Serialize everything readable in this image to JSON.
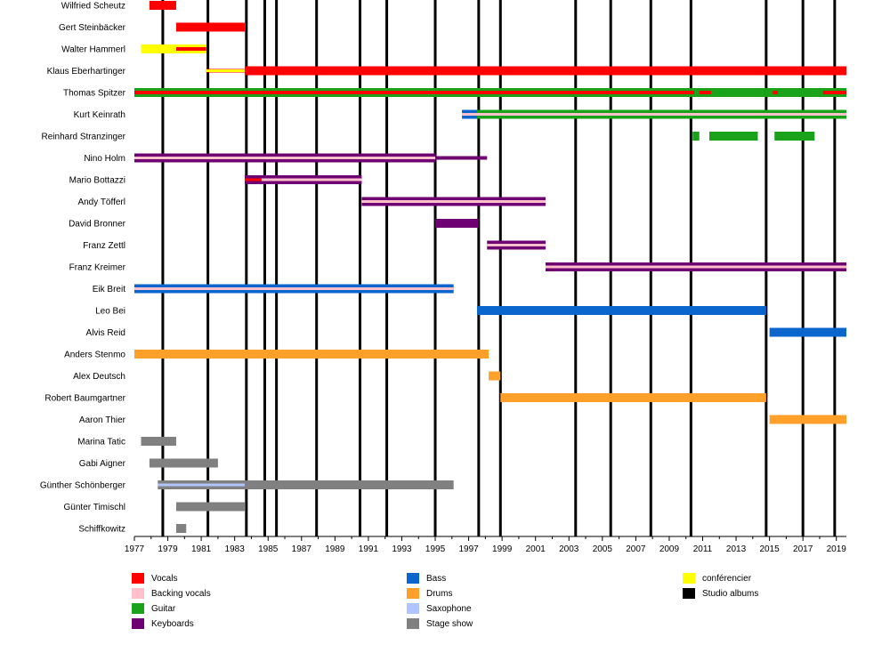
{
  "chart_data": {
    "type": "timeline",
    "title": "",
    "x_axis": {
      "min": 1977,
      "max": 2019.6,
      "tick_start": 1977,
      "tick_end": 2019,
      "tick_step": 2
    },
    "colors": {
      "Vocals": "#ff0000",
      "Backing vocals": "#ffc0cb",
      "Guitar": "#1aa31a",
      "Keyboards": "#6e0073",
      "Bass": "#0a66cc",
      "Drums": "#ffa02a",
      "Saxophone": "#b0c4ff",
      "Stage show": "#808080",
      "conférencier": "#ffff00",
      "Studio albums": "#000000"
    },
    "legend": [
      [
        "Vocals",
        "Backing vocals",
        "Guitar",
        "Keyboards"
      ],
      [
        "Bass",
        "Drums",
        "Saxophone",
        "Stage show"
      ],
      [
        "conférencier",
        "Studio albums"
      ]
    ],
    "studio_albums": [
      1978.7,
      1981.4,
      1983.7,
      1984.8,
      1985.5,
      1987.9,
      1990.5,
      1992.1,
      1995.0,
      1997.6,
      1998.9,
      2003.4,
      2005.5,
      2007.9,
      2010.3,
      2014.8,
      2017.0,
      2018.9
    ],
    "members": [
      {
        "name": "Wilfried Scheutz",
        "bars": [
          {
            "role": "Vocals",
            "start": 1977.9,
            "end": 1979.5
          }
        ]
      },
      {
        "name": "Gert Steinbäcker",
        "bars": [
          {
            "role": "Vocals",
            "start": 1979.5,
            "end": 1983.6
          }
        ]
      },
      {
        "name": "Walter Hammerl",
        "bars": [
          {
            "role": "conférencier",
            "start": 1977.4,
            "end": 1981.3
          },
          {
            "role": "Vocals",
            "start": 1979.5,
            "end": 1981.3,
            "thin": true
          }
        ]
      },
      {
        "name": "Klaus Eberhartinger",
        "bars": [
          {
            "role": "Vocals",
            "start": 1981.3,
            "end": 1983.6,
            "thin": true
          },
          {
            "role": "conférencier",
            "start": 1981.3,
            "end": 1983.6,
            "stripe": true
          },
          {
            "role": "Vocals",
            "start": 1983.6,
            "end": 2019.6
          }
        ]
      },
      {
        "name": "Thomas Spitzer",
        "bars": [
          {
            "role": "Guitar",
            "start": 1977.0,
            "end": 2019.6
          },
          {
            "role": "Vocals",
            "start": 1977.0,
            "end": 2010.5,
            "thin": true
          },
          {
            "role": "Vocals",
            "start": 2010.8,
            "end": 2011.5,
            "thin": true
          },
          {
            "role": "Vocals",
            "start": 2015.2,
            "end": 2015.5,
            "thin": true
          },
          {
            "role": "Vocals",
            "start": 2018.2,
            "end": 2019.6,
            "thin": true
          }
        ]
      },
      {
        "name": "Kurt Keinrath",
        "bars": [
          {
            "role": "Bass",
            "start": 1996.6,
            "end": 1997.5
          },
          {
            "role": "Guitar",
            "start": 1997.5,
            "end": 2019.6
          },
          {
            "role": "Backing vocals",
            "start": 1996.6,
            "end": 2019.6,
            "stripe": true
          }
        ]
      },
      {
        "name": "Reinhard Stranzinger",
        "bars": [
          {
            "role": "Guitar",
            "start": 2010.4,
            "end": 2010.8
          },
          {
            "role": "Guitar",
            "start": 2011.4,
            "end": 2014.3
          },
          {
            "role": "Guitar",
            "start": 2015.3,
            "end": 2017.7
          }
        ]
      },
      {
        "name": "Nino Holm",
        "bars": [
          {
            "role": "Keyboards",
            "start": 1977.0,
            "end": 1995.0
          },
          {
            "role": "Backing vocals",
            "start": 1977.0,
            "end": 1995.0,
            "stripe": true
          },
          {
            "role": "Keyboards",
            "start": 1995.0,
            "end": 1998.1,
            "thin": true
          }
        ]
      },
      {
        "name": "Mario Bottazzi",
        "bars": [
          {
            "role": "Keyboards",
            "start": 1983.6,
            "end": 1990.6
          },
          {
            "role": "Backing vocals",
            "start": 1984.6,
            "end": 1990.6,
            "stripe": true
          },
          {
            "role": "Vocals",
            "start": 1983.6,
            "end": 1984.6,
            "stripe": true
          }
        ]
      },
      {
        "name": "Andy Töfferl",
        "bars": [
          {
            "role": "Keyboards",
            "start": 1990.6,
            "end": 2001.6
          },
          {
            "role": "Backing vocals",
            "start": 1990.6,
            "end": 2001.6,
            "stripe": true
          }
        ]
      },
      {
        "name": "David Bronner",
        "bars": [
          {
            "role": "Keyboards",
            "start": 1995.0,
            "end": 1997.6
          }
        ]
      },
      {
        "name": "Franz Zettl",
        "bars": [
          {
            "role": "Keyboards",
            "start": 1998.1,
            "end": 2001.6
          },
          {
            "role": "Backing vocals",
            "start": 1998.1,
            "end": 2001.6,
            "stripe": true
          }
        ]
      },
      {
        "name": "Franz Kreimer",
        "bars": [
          {
            "role": "Keyboards",
            "start": 2001.6,
            "end": 2019.6
          },
          {
            "role": "Backing vocals",
            "start": 2001.6,
            "end": 2019.6,
            "stripe": true
          }
        ]
      },
      {
        "name": "Eik Breit",
        "bars": [
          {
            "role": "Bass",
            "start": 1977.0,
            "end": 1996.1
          },
          {
            "role": "Backing vocals",
            "start": 1977.0,
            "end": 1996.1,
            "stripe": true
          }
        ]
      },
      {
        "name": "Leo Bei",
        "bars": [
          {
            "role": "Bass",
            "start": 1997.5,
            "end": 2014.8
          }
        ]
      },
      {
        "name": "Alvis Reid",
        "bars": [
          {
            "role": "Bass",
            "start": 2015.0,
            "end": 2019.6
          }
        ]
      },
      {
        "name": "Anders Stenmo",
        "bars": [
          {
            "role": "Drums",
            "start": 1977.0,
            "end": 1998.2
          }
        ]
      },
      {
        "name": "Alex Deutsch",
        "bars": [
          {
            "role": "Drums",
            "start": 1998.2,
            "end": 1998.9
          }
        ]
      },
      {
        "name": "Robert Baumgartner",
        "bars": [
          {
            "role": "Drums",
            "start": 1998.9,
            "end": 2014.8
          }
        ]
      },
      {
        "name": "Aaron Thier",
        "bars": [
          {
            "role": "Drums",
            "start": 2015.0,
            "end": 2019.6
          }
        ]
      },
      {
        "name": "Marina Tatic",
        "bars": [
          {
            "role": "Stage show",
            "start": 1977.4,
            "end": 1979.5
          }
        ]
      },
      {
        "name": "Gabi Aigner",
        "bars": [
          {
            "role": "Stage show",
            "start": 1977.9,
            "end": 1982.0
          }
        ]
      },
      {
        "name": "Günther Schönberger",
        "bars": [
          {
            "role": "Stage show",
            "start": 1978.4,
            "end": 1996.1
          },
          {
            "role": "Saxophone",
            "start": 1978.4,
            "end": 1983.6,
            "stripe": true
          }
        ]
      },
      {
        "name": "Günter Timischl",
        "bars": [
          {
            "role": "Stage show",
            "start": 1979.5,
            "end": 1983.6
          }
        ]
      },
      {
        "name": "Schiffkowitz",
        "bars": [
          {
            "role": "Stage show",
            "start": 1979.5,
            "end": 1980.1
          }
        ]
      }
    ]
  }
}
